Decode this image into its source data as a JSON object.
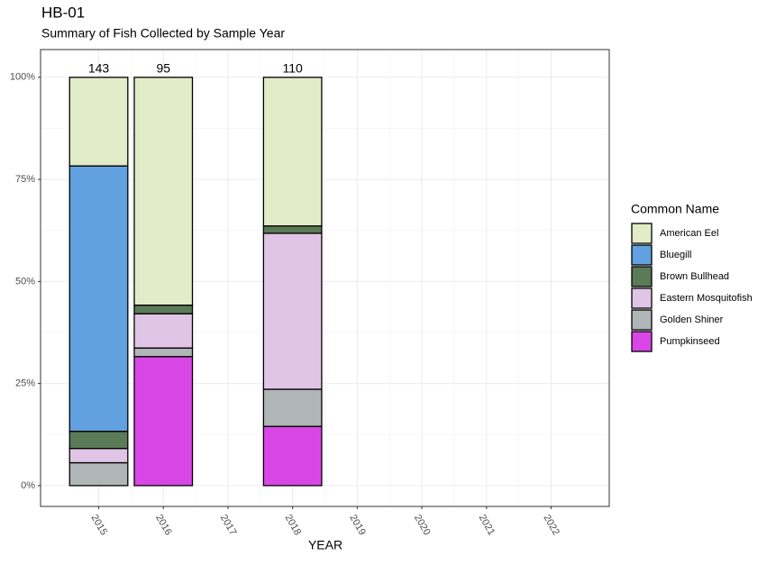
{
  "chart_data": {
    "type": "stacked_bar_percent",
    "title": "HB-01",
    "subtitle": "Summary of Fish Collected by Sample Year",
    "x_label": "YEAR",
    "legend_title": "Common Name",
    "categories": [
      "2015",
      "2016",
      "2017",
      "2018",
      "2019",
      "2020",
      "2021",
      "2022"
    ],
    "totals": [
      143,
      95,
      null,
      110,
      null,
      null,
      null,
      null
    ],
    "series": [
      {
        "name": "American Eel",
        "color": "#e2ecc8",
        "values": [
          21.7,
          55.8,
          null,
          36.4,
          null,
          null,
          null,
          null
        ]
      },
      {
        "name": "Bluegill",
        "color": "#62a1e0",
        "values": [
          65.0,
          0,
          null,
          0,
          null,
          null,
          null,
          null
        ]
      },
      {
        "name": "Brown Bullhead",
        "color": "#5b7a58",
        "values": [
          4.2,
          2.1,
          null,
          1.8,
          null,
          null,
          null,
          null
        ]
      },
      {
        "name": "Eastern Mosquitofish",
        "color": "#e0c5e6",
        "values": [
          3.5,
          8.4,
          null,
          38.2,
          null,
          null,
          null,
          null
        ]
      },
      {
        "name": "Golden Shiner",
        "color": "#b0b5b5",
        "values": [
          5.6,
          2.1,
          null,
          9.1,
          null,
          null,
          null,
          null
        ]
      },
      {
        "name": "Pumpkinseed",
        "color": "#d946e6",
        "values": [
          0,
          31.6,
          null,
          14.5,
          null,
          null,
          null,
          null
        ]
      }
    ],
    "ylim": [
      -5.1,
      106.8
    ],
    "yticks": [
      {
        "value": 0,
        "label": "0%"
      },
      {
        "value": 25,
        "label": "25%"
      },
      {
        "value": 50,
        "label": "50%"
      },
      {
        "value": 75,
        "label": "75%"
      },
      {
        "value": 100,
        "label": "100%"
      }
    ],
    "grid": true,
    "legend_position": "right"
  }
}
